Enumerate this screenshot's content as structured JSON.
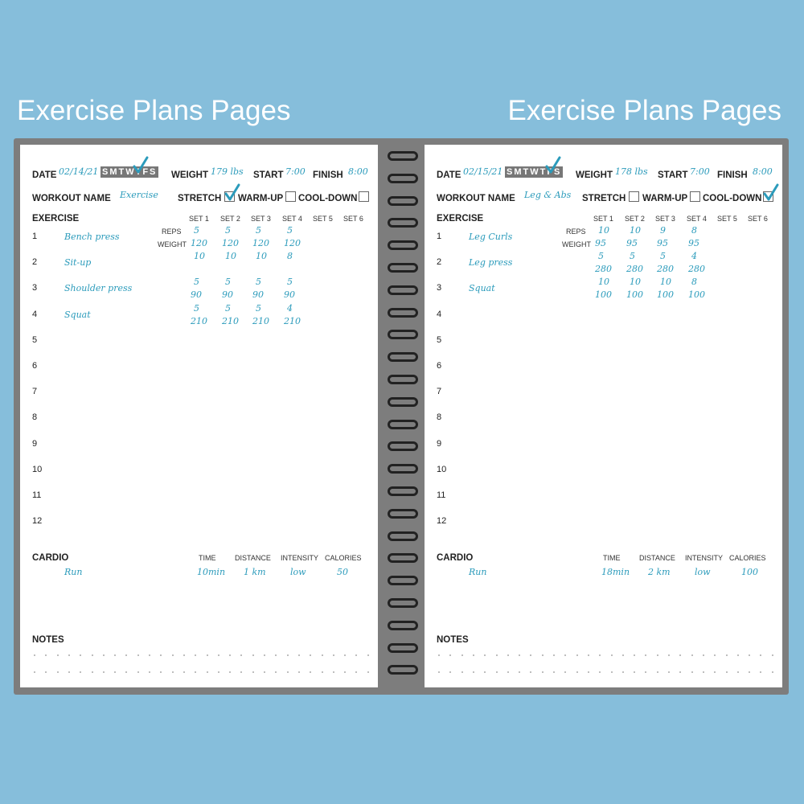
{
  "titles": [
    "Exercise Plans Pages",
    "Exercise Plans Pages"
  ],
  "labels": {
    "date": "DATE",
    "days": "SMTWTFS",
    "weight": "WEIGHT",
    "start": "START",
    "finish": "FINISH",
    "workout_name": "WORKOUT NAME",
    "stretch": "STRETCH",
    "warmup": "WARM-UP",
    "cooldown": "COOL-DOWN",
    "exercise": "EXERCISE",
    "sets": [
      "SET 1",
      "SET 2",
      "SET 3",
      "SET 4",
      "SET 5",
      "SET 6"
    ],
    "reps": "REPS",
    "weight_small": "WEIGHT",
    "cardio": "CARDIO",
    "cardio_cols": [
      "TIME",
      "DISTANCE",
      "INTENSITY",
      "CALORIES"
    ],
    "notes": "NOTES",
    "row_numbers": [
      "1",
      "2",
      "3",
      "4",
      "5",
      "6",
      "7",
      "8",
      "9",
      "10",
      "11",
      "12"
    ]
  },
  "colors": {
    "background": "#86bedb",
    "ink": "#2b9bbb",
    "shading": "#d9d9d9"
  },
  "pages": [
    {
      "date": "02/14/21",
      "checked_day": "T",
      "weight": "179 lbs",
      "start": "7:00",
      "finish": "8:00",
      "workout_name": "Exercise",
      "stretch": true,
      "warmup": false,
      "cooldown": false,
      "exercises": [
        {
          "name": "Bench press",
          "reps": [
            "5",
            "5",
            "5",
            "5"
          ],
          "weights": [
            "120",
            "120",
            "120",
            "120"
          ]
        },
        {
          "name": "Sit-up",
          "reps": [
            "10",
            "10",
            "10",
            "8"
          ],
          "weights": []
        },
        {
          "name": "Shoulder press",
          "reps": [
            "5",
            "5",
            "5",
            "5"
          ],
          "weights": [
            "90",
            "90",
            "90",
            "90"
          ]
        },
        {
          "name": "Squat",
          "reps": [
            "5",
            "5",
            "5",
            "4"
          ],
          "weights": [
            "210",
            "210",
            "210",
            "210"
          ]
        }
      ],
      "cardio": [
        {
          "name": "Run",
          "time": "10min",
          "distance": "1 km",
          "intensity": "low",
          "calories": "50"
        }
      ]
    },
    {
      "date": "02/15/21",
      "checked_day": "F",
      "weight": "178 lbs",
      "start": "7:00",
      "finish": "8:00",
      "workout_name": "Leg & Abs",
      "stretch": false,
      "warmup": false,
      "cooldown": true,
      "exercises": [
        {
          "name": "Leg Curls",
          "reps": [
            "10",
            "10",
            "9",
            "8"
          ],
          "weights": [
            "95",
            "95",
            "95",
            "95"
          ]
        },
        {
          "name": "Leg press",
          "reps": [
            "5",
            "5",
            "5",
            "4"
          ],
          "weights": [
            "280",
            "280",
            "280",
            "280"
          ]
        },
        {
          "name": "Squat",
          "reps": [
            "10",
            "10",
            "10",
            "8"
          ],
          "weights": [
            "100",
            "100",
            "100",
            "100"
          ]
        }
      ],
      "cardio": [
        {
          "name": "Run",
          "time": "18min",
          "distance": "2 km",
          "intensity": "low",
          "calories": "100"
        }
      ]
    }
  ]
}
